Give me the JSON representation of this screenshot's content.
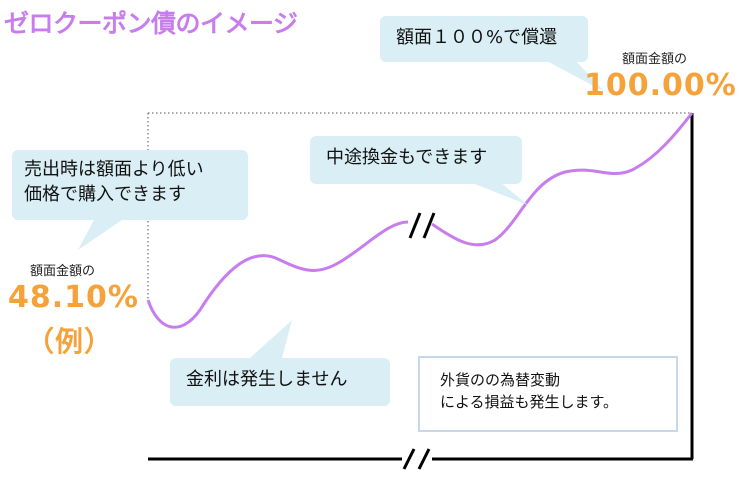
{
  "title": "ゼロクーポン債のイメージ",
  "bubbles": {
    "redemption": "額面１００%で償還",
    "purchase_line1": "売出時は額面より低い",
    "purchase_line2": "価格で購入できます",
    "midway": "中途換金もできます",
    "interest": "金利は発生しません"
  },
  "start": {
    "label": "額面金額の",
    "value": "48.10%",
    "note": "（例）"
  },
  "end": {
    "label": "額面金額の",
    "value": "100.00%"
  },
  "fx_note": {
    "line1": "外貨のの為替変動",
    "line2": "による損益も発生します。"
  },
  "colors": {
    "title": "#c77dee",
    "curve": "#c77dee",
    "bubble": "#d9eef5",
    "value": "#f6a23a",
    "note_border": "#c9d7ea"
  }
}
